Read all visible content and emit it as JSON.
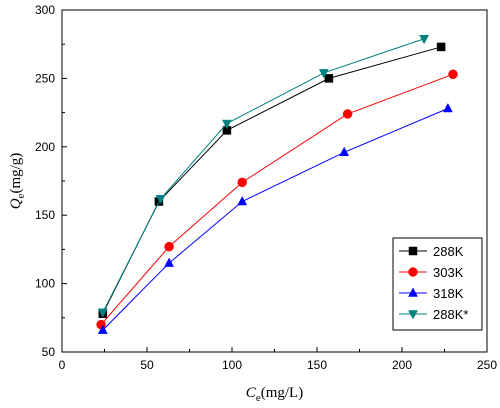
{
  "chart_data": {
    "type": "line",
    "xlabel": {
      "main": "C",
      "sub": "e",
      "unit": "(mg/L)"
    },
    "ylabel": {
      "main": "Q",
      "sub": "e",
      "unit": "(mg/g)"
    },
    "xlim": [
      0,
      250
    ],
    "ylim": [
      50,
      300
    ],
    "xticks": [
      0,
      50,
      100,
      150,
      200,
      250
    ],
    "yticks": [
      50,
      100,
      150,
      200,
      250,
      300
    ],
    "grid": false,
    "legend_position": "bottom-right",
    "series": [
      {
        "name": "288K",
        "color": "#000000",
        "marker": "square",
        "x": [
          24,
          57,
          97,
          157,
          223
        ],
        "y": [
          78,
          160,
          212,
          250,
          273
        ]
      },
      {
        "name": "303K",
        "color": "#ff0000",
        "marker": "circle",
        "x": [
          23,
          63,
          106,
          168,
          230
        ],
        "y": [
          70,
          127,
          174,
          224,
          253
        ]
      },
      {
        "name": "318K",
        "color": "#0000ff",
        "marker": "triangle-up",
        "x": [
          24,
          63,
          106,
          166,
          227
        ],
        "y": [
          66,
          115,
          160,
          196,
          228
        ]
      },
      {
        "name": "288K*",
        "color": "#008080",
        "marker": "triangle-down",
        "x": [
          24,
          58,
          97,
          154,
          213
        ],
        "y": [
          79,
          162,
          217,
          254,
          279
        ]
      }
    ]
  }
}
